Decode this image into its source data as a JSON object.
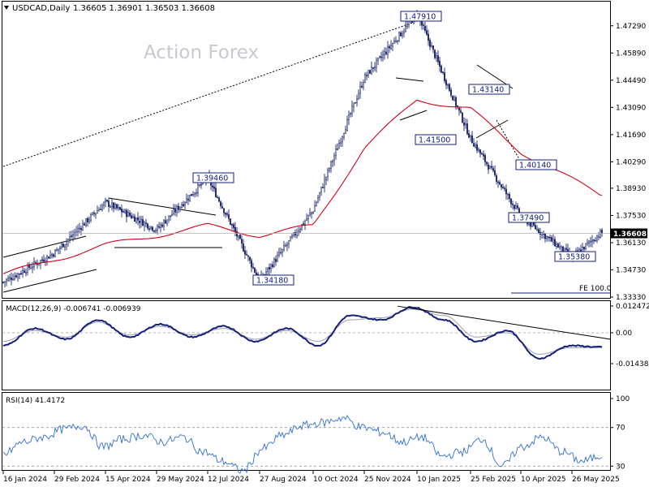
{
  "header": {
    "symbol": "USDCAD,Daily",
    "ohlc": "1.36605 1.36901 1.36503 1.36608",
    "watermark": "Action Forex"
  },
  "price_scale": {
    "ticks": [
      "1.47290",
      "1.45890",
      "1.44490",
      "1.43090",
      "1.41690",
      "1.40290",
      "1.38930",
      "1.37530",
      "1.36130",
      "1.34730",
      "1.33330"
    ],
    "current": "1.36608"
  },
  "annotations": [
    {
      "text": "1.47910",
      "anchor": "right"
    },
    {
      "text": "1.39460",
      "anchor": "left"
    },
    {
      "text": "1.34180",
      "anchor": "left"
    },
    {
      "text": "1.41500",
      "anchor": "left"
    },
    {
      "text": "1.43140",
      "anchor": "left"
    },
    {
      "text": "1.40140",
      "anchor": "left"
    },
    {
      "text": "1.37490",
      "anchor": "left"
    },
    {
      "text": "1.35380",
      "anchor": "left"
    }
  ],
  "fe_label": "FE 100.0",
  "macd": {
    "title": "MACD(12,26,9) -0.006741 -0.006939",
    "ticks": [
      "0.012472",
      "0.00",
      "-0.014389"
    ]
  },
  "rsi": {
    "title": "RSI(14) 41.4172",
    "ticks": [
      "100",
      "70",
      "30",
      "0"
    ]
  },
  "x_axis": {
    "labels": [
      "16 Jan 2024",
      "29 Feb 2024",
      "15 Apr 2024",
      "29 May 2024",
      "12 Jul 2024",
      "27 Aug 2024",
      "10 Oct 2024",
      "25 Nov 2024",
      "10 Jan 2025",
      "25 Feb 2025",
      "10 Apr 2025",
      "26 May 2025"
    ]
  },
  "colors": {
    "candles": "#1f2a6e",
    "ma": "#d0021b",
    "macd": "#16207a",
    "signal": "#9aa0b0",
    "rsi": "#2f6fd6",
    "trend": "#000000"
  },
  "chart_data": [
    {
      "type": "candlestick",
      "title": "USDCAD,Daily",
      "x_range": [
        "16 Jan 2024",
        "June 2025"
      ],
      "ylim": [
        1.3333,
        1.4799
      ],
      "key_points": [
        {
          "date": "16 Jan 2024",
          "value": 1.341
        },
        {
          "date": "29 Feb 2024",
          "value": 1.356
        },
        {
          "date": "15 Apr 2024",
          "value": 1.382
        },
        {
          "date": "29 May 2024",
          "value": 1.368
        },
        {
          "date": "12 Jul 2024",
          "value": 1.3946
        },
        {
          "date": "27 Aug 2024",
          "value": 1.3418
        },
        {
          "date": "10 Oct 2024",
          "value": 1.378
        },
        {
          "date": "25 Nov 2024",
          "value": 1.446
        },
        {
          "date": "10 Jan 2025",
          "value": 1.4791
        },
        {
          "date": "25 Feb 2025",
          "value": 1.415
        },
        {
          "date": "10 Apr 2025",
          "value": 1.3749
        },
        {
          "date": "26 May 2025",
          "value": 1.3538
        },
        {
          "date": "June 2025",
          "value": 1.36608
        }
      ],
      "moving_average": {
        "key_points": [
          {
            "date": "16 Jan 2024",
            "value": 1.345
          },
          {
            "date": "15 Apr 2024",
            "value": 1.36
          },
          {
            "date": "12 Jul 2024",
            "value": 1.37
          },
          {
            "date": "27 Aug 2024",
            "value": 1.365
          },
          {
            "date": "10 Oct 2024",
            "value": 1.37
          },
          {
            "date": "25 Nov 2024",
            "value": 1.41
          },
          {
            "date": "10 Jan 2025",
            "value": 1.435
          },
          {
            "date": "25 Feb 2025",
            "value": 1.43
          },
          {
            "date": "10 Apr 2025",
            "value": 1.408
          },
          {
            "date": "June 2025",
            "value": 1.386
          }
        ]
      },
      "levels": [
        1.4791,
        1.3946,
        1.3418,
        1.415,
        1.4314,
        1.4014,
        1.3749,
        1.3538
      ],
      "grid": false
    },
    {
      "type": "line",
      "title": "MACD(12,26,9) -0.006741 -0.006939",
      "ylim": [
        -0.014389,
        0.012472
      ],
      "series": [
        {
          "name": "MACD",
          "values": [
            -0.006,
            0.002,
            -0.003,
            0.006,
            -0.002,
            0.004,
            -0.002,
            0.003,
            -0.004,
            0.002,
            -0.006,
            0.008,
            0.006,
            0.012,
            0.006,
            -0.004,
            0.001,
            -0.012,
            -0.006,
            -0.0067
          ]
        },
        {
          "name": "Signal",
          "values": [
            -0.004,
            0.001,
            -0.002,
            0.005,
            -0.001,
            0.003,
            -0.001,
            0.002,
            -0.003,
            0.001,
            -0.004,
            0.006,
            0.007,
            0.011,
            0.008,
            -0.002,
            0.0,
            -0.01,
            -0.007,
            -0.0069
          ]
        }
      ]
    },
    {
      "type": "line",
      "title": "RSI(14) 41.4172",
      "ylim": [
        0,
        100
      ],
      "series": [
        {
          "name": "RSI",
          "values": [
            42,
            55,
            60,
            68,
            72,
            50,
            58,
            62,
            55,
            60,
            45,
            35,
            25,
            48,
            62,
            72,
            75,
            80,
            70,
            65,
            55,
            60,
            40,
            45,
            58,
            30,
            50,
            60,
            45,
            35,
            41
          ]
        }
      ]
    }
  ]
}
